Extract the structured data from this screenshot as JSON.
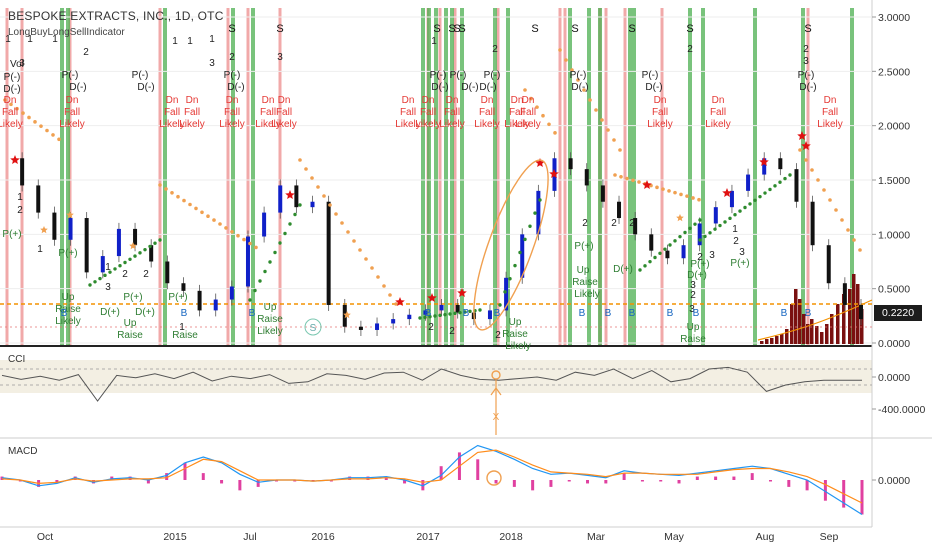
{
  "header": {
    "title": "BESPOKE EXTRACTS, INC., 1D, OTC",
    "indicator": "LongBuyLongSellIndicator",
    "vol_label": "Vol"
  },
  "price_badge": "0.2220",
  "panes": {
    "cci": {
      "title": "CCI"
    },
    "macd": {
      "title": "MACD"
    }
  },
  "annotations": {
    "signal_words": [
      "S",
      "P(-)",
      "D(-)",
      "Dn",
      "Fall",
      "Likely",
      "P(+)",
      "D(+)",
      "Up",
      "Raise"
    ],
    "buy_marker": "B",
    "circle_marker": "S"
  },
  "colors": {
    "green_band": "#4caf50",
    "red_band": "#ef9a9a",
    "up_bar": "#1020c8",
    "down_bar": "#111111",
    "dots_orange": "#f0a050",
    "dots_green": "#2e8b2e",
    "dotted_line": "#f39200",
    "volume": "#7a1010",
    "cci_line": "#555555",
    "macd_line": "#2196f3",
    "signal_line": "#ff8c1a",
    "histogram": "#e040a0"
  },
  "chart_data": [
    {
      "type": "line",
      "title": "BESPOKE EXTRACTS, INC., 1D, OTC",
      "x_tick_labels": [
        "Oct",
        "2015",
        "Jul",
        "2016",
        "2017",
        "2018",
        "Mar",
        "May",
        "Aug",
        "Sep"
      ],
      "y_ticks": [
        0.0,
        0.5,
        1.0,
        1.5,
        2.0,
        2.5,
        3.0
      ],
      "y_tick_labels": [
        "0.0000",
        "0.5000",
        "1.0000",
        "1.5000",
        "2.0000",
        "2.5000",
        "3.0000"
      ],
      "ylim": [
        0.0,
        3.1
      ],
      "last_price": 0.222,
      "series": [
        {
          "values": [
            1.7,
            1.45,
            1.2,
            0.95,
            1.15,
            0.65,
            0.8,
            1.05,
            0.9,
            0.75,
            0.55,
            0.48,
            0.3,
            0.4,
            0.52,
            0.98,
            1.2,
            1.45,
            1.25,
            1.3,
            0.35,
            0.15,
            0.12,
            0.18,
            0.22,
            0.26,
            0.3,
            0.35,
            0.28,
            0.22,
            0.3,
            0.6,
            1.0,
            1.4,
            1.7,
            1.6,
            1.45,
            1.3,
            1.15,
            1.0,
            0.85,
            0.78,
            0.9,
            1.1,
            1.25,
            1.4,
            1.55,
            1.7,
            1.6,
            1.3,
            0.9,
            0.55,
            0.35,
            0.22
          ]
        }
      ]
    },
    {
      "type": "line",
      "title": "CCI",
      "y_ticks": [
        0,
        -400
      ],
      "y_tick_labels": [
        "0.0000",
        "-400.0000"
      ],
      "ylim": [
        -600,
        200
      ],
      "series": [
        {
          "values": [
            20,
            -30,
            10,
            -40,
            30,
            -300,
            20,
            -10,
            40,
            -20,
            60,
            -50,
            10,
            -20,
            30,
            -80,
            -60,
            40,
            20,
            -30,
            50,
            60,
            -40,
            100,
            20,
            -30,
            -40,
            -20,
            0,
            -40,
            60,
            20,
            100,
            -20,
            80,
            -60,
            -20,
            100,
            120,
            60,
            -180,
            -100,
            -60,
            -40,
            -40,
            -40
          ]
        }
      ]
    },
    {
      "type": "line",
      "title": "MACD",
      "y_ticks": [
        0
      ],
      "y_tick_labels": [
        "0.0000"
      ],
      "ylim": [
        -0.35,
        0.35
      ],
      "series": [
        {
          "values": [
            0.02,
            0.0,
            -0.05,
            -0.03,
            0.02,
            -0.02,
            0.01,
            0.02,
            0.0,
            0.04,
            0.15,
            0.2,
            0.15,
            0.05,
            -0.02,
            0.0,
            0.0,
            -0.01,
            0.0,
            0.02,
            0.02,
            0.03,
            0.0,
            -0.05,
            0.04,
            0.2,
            0.3,
            0.25,
            0.18,
            0.1,
            0.05,
            0.06,
            0.04,
            0.02,
            0.08,
            0.06,
            0.05,
            0.04,
            0.06,
            0.08,
            0.1,
            0.12,
            0.1,
            0.05,
            0.0,
            -0.1,
            -0.2,
            -0.3
          ]
        },
        {
          "values": [
            0.01,
            0.0,
            -0.03,
            -0.02,
            0.01,
            -0.01,
            0.0,
            0.01,
            0.01,
            0.02,
            0.1,
            0.18,
            0.16,
            0.08,
            0.0,
            0.0,
            0.0,
            -0.01,
            0.0,
            0.01,
            0.01,
            0.02,
            0.01,
            -0.02,
            0.0,
            0.12,
            0.24,
            0.26,
            0.2,
            0.13,
            0.07,
            0.06,
            0.05,
            0.03,
            0.06,
            0.06,
            0.05,
            0.05,
            0.05,
            0.07,
            0.09,
            0.1,
            0.1,
            0.07,
            0.03,
            -0.04,
            -0.12,
            -0.2
          ]
        }
      ]
    }
  ]
}
